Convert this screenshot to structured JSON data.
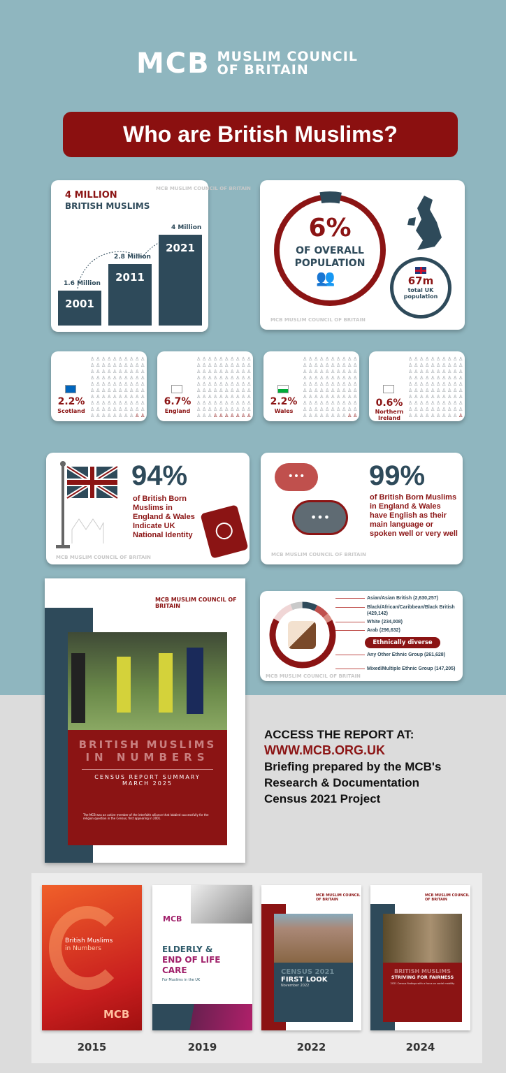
{
  "header": {
    "logo_mark": "MCB",
    "logo_text_line1": "MUSLIM COUNCIL",
    "logo_text_line2": "OF BRITAIN",
    "title": "Who are British Muslims?"
  },
  "population_card": {
    "headline_red": "4 MILLION",
    "headline": "BRITISH MUSLIMS",
    "logo": "MCB MUSLIM COUNCIL OF BRITAIN",
    "bars": [
      {
        "year": "2001",
        "label": "1.6 Million",
        "value_millions": 1.6
      },
      {
        "year": "2011",
        "label": "2.8 Million",
        "value_millions": 2.8
      },
      {
        "year": "2021",
        "label": "4 Million",
        "value_millions": 4
      }
    ]
  },
  "share_card": {
    "percent": "6%",
    "percent_value": 6,
    "line1": "OF OVERALL",
    "line2": "POPULATION",
    "total": "67m",
    "total_label1": "total UK",
    "total_label2": "population",
    "logo": "MCB MUSLIM COUNCIL OF BRITAIN",
    "icons": [
      "people-icon",
      "uk-map-icon",
      "union-jack-flag-icon"
    ]
  },
  "regions": [
    {
      "name": "Scotland",
      "percent": "2.2%",
      "value": 2.2,
      "highlighted": 2,
      "flag": "scotland-flag"
    },
    {
      "name": "England",
      "percent": "6.7%",
      "value": 6.7,
      "highlighted": 7,
      "flag": "england-flag"
    },
    {
      "name": "Wales",
      "percent": "2.2%",
      "value": 2.2,
      "highlighted": 2,
      "flag": "wales-flag"
    },
    {
      "name": "Northern Ireland",
      "percent": "0.6%",
      "value": 0.6,
      "highlighted": 1,
      "flag": "northern-ireland-flag"
    }
  ],
  "identity_card": {
    "percent": "94%",
    "desc": "of British Born Muslims in England & Wales Indicate UK National Identity",
    "logo": "MCB MUSLIM COUNCIL OF BRITAIN"
  },
  "language_card": {
    "percent": "99%",
    "desc": "of British Born Muslims in England & Wales have English as their main language or spoken well or very well",
    "logo": "MCB MUSLIM COUNCIL OF BRITAIN"
  },
  "ethnicity_card": {
    "badge": "Ethnically diverse",
    "logo": "MCB MUSLIM COUNCIL OF BRITAIN",
    "groups": [
      {
        "label": "Asian/Asian British (2,630,257)",
        "value": 2630257,
        "color": "#8b1414"
      },
      {
        "label": "Black/African/Caribbean/Black British (429,142)",
        "value": 429142,
        "color": "#f0d6d6"
      },
      {
        "label": "White (234,008)",
        "value": 234008,
        "color": "#c9c9c9"
      },
      {
        "label": "Arab (296,632)",
        "value": 296632,
        "color": "#2e4a5a"
      },
      {
        "label": "Any Other Ethnic Group (261,628)",
        "value": 261628,
        "color": "#c0504d"
      },
      {
        "label": "Mixed/Multiple Ethnic Group (147,205)",
        "value": 147205,
        "color": "#d98a80"
      }
    ]
  },
  "report_cover": {
    "logo": "MCB MUSLIM COUNCIL OF BRITAIN",
    "title1": "BRITISH MUSLIMS",
    "title2": "IN NUMBERS",
    "subtitle1": "CENSUS REPORT SUMMARY",
    "subtitle2": "MARCH 2025",
    "note": "The MCB was an active member of the interfaith alliance that lobbied successfully for the religion question in the Census, first appearing in 2001."
  },
  "access": {
    "line1": "ACCESS THE REPORT AT:",
    "url": "WWW.MCB.ORG.UK",
    "line3": "Briefing prepared by the MCB's",
    "line4": "Research & Documentation",
    "line5": "Census 2021 Project"
  },
  "past_reports": [
    {
      "year": "2015",
      "title": "British Muslims",
      "title2": "in Numbers",
      "logo": "MCB"
    },
    {
      "year": "2019",
      "logo": "MCB",
      "title": "ELDERLY &",
      "title2": "END OF LIFE",
      "title3": "CARE",
      "subtitle": "For Muslims in the UK"
    },
    {
      "year": "2022",
      "logo": "MCB MUSLIM COUNCIL OF BRITAIN",
      "title": "CENSUS 2021",
      "title2": "FIRST LOOK",
      "subtitle": "November 2022"
    },
    {
      "year": "2024",
      "logo": "MCB MUSLIM COUNCIL OF BRITAIN",
      "title": "BRITISH MUSLIMS",
      "title2": "STRIVING FOR FAIRNESS",
      "subtitle": "2021 Census findings with a focus on social mobility"
    }
  ]
}
